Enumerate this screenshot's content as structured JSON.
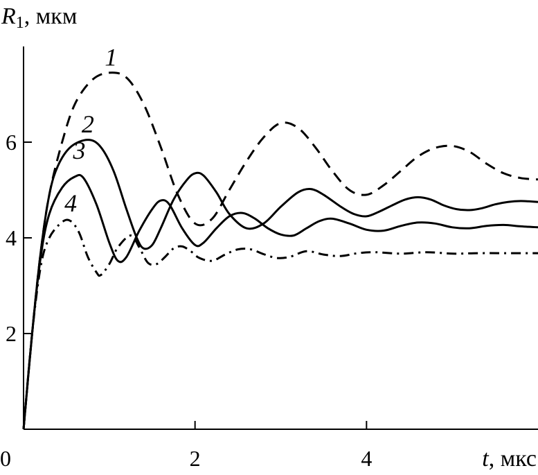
{
  "chart_data": {
    "type": "line",
    "ylabel_symbol": "R",
    "ylabel_subscript": "1",
    "ylabel_unit": ", мкм",
    "xlabel_symbol": "t",
    "xlabel_unit": ", мкс",
    "xlim": [
      0,
      6
    ],
    "ylim": [
      0,
      8
    ],
    "x_ticks": [
      {
        "value": 0,
        "label": "0"
      },
      {
        "value": 2,
        "label": "2"
      },
      {
        "value": 4,
        "label": "4"
      }
    ],
    "y_ticks": [
      {
        "value": 2,
        "label": "2"
      },
      {
        "value": 4,
        "label": "4"
      },
      {
        "value": 6,
        "label": "6"
      }
    ],
    "grid": false,
    "series": [
      {
        "label": "1",
        "style": "dashed",
        "label_at": [
          1.02,
          7.6
        ],
        "points": [
          [
            0,
            0
          ],
          [
            0.1,
            2.0
          ],
          [
            0.2,
            3.7
          ],
          [
            0.3,
            4.9
          ],
          [
            0.45,
            6.0
          ],
          [
            0.6,
            6.8
          ],
          [
            0.8,
            7.3
          ],
          [
            1.0,
            7.45
          ],
          [
            1.2,
            7.35
          ],
          [
            1.4,
            6.8
          ],
          [
            1.6,
            5.9
          ],
          [
            1.8,
            4.9
          ],
          [
            2.0,
            4.3
          ],
          [
            2.2,
            4.4
          ],
          [
            2.4,
            5.0
          ],
          [
            2.6,
            5.6
          ],
          [
            2.8,
            6.1
          ],
          [
            3.0,
            6.4
          ],
          [
            3.2,
            6.3
          ],
          [
            3.4,
            5.9
          ],
          [
            3.6,
            5.4
          ],
          [
            3.8,
            5.0
          ],
          [
            4.0,
            4.9
          ],
          [
            4.2,
            5.1
          ],
          [
            4.4,
            5.4
          ],
          [
            4.6,
            5.7
          ],
          [
            4.8,
            5.88
          ],
          [
            5.0,
            5.92
          ],
          [
            5.2,
            5.8
          ],
          [
            5.4,
            5.55
          ],
          [
            5.6,
            5.35
          ],
          [
            5.8,
            5.25
          ],
          [
            6.0,
            5.22
          ]
        ]
      },
      {
        "label": "2",
        "style": "solid",
        "label_at": [
          0.75,
          6.2
        ],
        "points": [
          [
            0,
            0
          ],
          [
            0.1,
            2.0
          ],
          [
            0.2,
            3.7
          ],
          [
            0.3,
            4.9
          ],
          [
            0.4,
            5.5
          ],
          [
            0.55,
            5.9
          ],
          [
            0.75,
            6.05
          ],
          [
            0.9,
            5.9
          ],
          [
            1.05,
            5.4
          ],
          [
            1.2,
            4.6
          ],
          [
            1.32,
            4.0
          ],
          [
            1.4,
            3.78
          ],
          [
            1.5,
            3.85
          ],
          [
            1.6,
            4.2
          ],
          [
            1.75,
            4.8
          ],
          [
            1.9,
            5.2
          ],
          [
            2.0,
            5.35
          ],
          [
            2.1,
            5.3
          ],
          [
            2.25,
            4.95
          ],
          [
            2.4,
            4.5
          ],
          [
            2.6,
            4.2
          ],
          [
            2.8,
            4.3
          ],
          [
            3.0,
            4.65
          ],
          [
            3.2,
            4.95
          ],
          [
            3.35,
            5.02
          ],
          [
            3.5,
            4.9
          ],
          [
            3.7,
            4.65
          ],
          [
            3.85,
            4.5
          ],
          [
            4.0,
            4.45
          ],
          [
            4.15,
            4.55
          ],
          [
            4.3,
            4.68
          ],
          [
            4.45,
            4.8
          ],
          [
            4.6,
            4.85
          ],
          [
            4.75,
            4.8
          ],
          [
            4.9,
            4.68
          ],
          [
            5.05,
            4.6
          ],
          [
            5.2,
            4.58
          ],
          [
            5.35,
            4.62
          ],
          [
            5.5,
            4.7
          ],
          [
            5.65,
            4.75
          ],
          [
            5.8,
            4.77
          ],
          [
            6.0,
            4.75
          ]
        ]
      },
      {
        "label": "3",
        "style": "solid",
        "label_at": [
          0.65,
          5.65
        ],
        "points": [
          [
            0,
            0
          ],
          [
            0.1,
            2.0
          ],
          [
            0.2,
            3.6
          ],
          [
            0.3,
            4.5
          ],
          [
            0.45,
            5.05
          ],
          [
            0.6,
            5.28
          ],
          [
            0.7,
            5.25
          ],
          [
            0.85,
            4.7
          ],
          [
            1.0,
            3.9
          ],
          [
            1.1,
            3.52
          ],
          [
            1.2,
            3.6
          ],
          [
            1.35,
            4.15
          ],
          [
            1.5,
            4.6
          ],
          [
            1.6,
            4.78
          ],
          [
            1.7,
            4.7
          ],
          [
            1.85,
            4.2
          ],
          [
            2.0,
            3.85
          ],
          [
            2.1,
            3.9
          ],
          [
            2.25,
            4.2
          ],
          [
            2.4,
            4.45
          ],
          [
            2.55,
            4.52
          ],
          [
            2.7,
            4.4
          ],
          [
            2.85,
            4.2
          ],
          [
            3.0,
            4.07
          ],
          [
            3.15,
            4.05
          ],
          [
            3.3,
            4.2
          ],
          [
            3.45,
            4.35
          ],
          [
            3.6,
            4.4
          ],
          [
            3.8,
            4.3
          ],
          [
            4.0,
            4.17
          ],
          [
            4.2,
            4.15
          ],
          [
            4.4,
            4.25
          ],
          [
            4.6,
            4.32
          ],
          [
            4.8,
            4.3
          ],
          [
            5.0,
            4.22
          ],
          [
            5.2,
            4.2
          ],
          [
            5.4,
            4.25
          ],
          [
            5.6,
            4.27
          ],
          [
            5.8,
            4.24
          ],
          [
            6.0,
            4.22
          ]
        ]
      },
      {
        "label": "4",
        "style": "dashdot",
        "label_at": [
          0.55,
          4.55
        ],
        "points": [
          [
            0,
            0
          ],
          [
            0.1,
            2.0
          ],
          [
            0.2,
            3.4
          ],
          [
            0.3,
            4.0
          ],
          [
            0.45,
            4.33
          ],
          [
            0.55,
            4.35
          ],
          [
            0.65,
            4.1
          ],
          [
            0.75,
            3.6
          ],
          [
            0.85,
            3.28
          ],
          [
            0.9,
            3.22
          ],
          [
            1.0,
            3.45
          ],
          [
            1.1,
            3.8
          ],
          [
            1.25,
            4.05
          ],
          [
            1.35,
            3.8
          ],
          [
            1.45,
            3.48
          ],
          [
            1.55,
            3.45
          ],
          [
            1.65,
            3.6
          ],
          [
            1.75,
            3.78
          ],
          [
            1.85,
            3.82
          ],
          [
            1.95,
            3.72
          ],
          [
            2.05,
            3.58
          ],
          [
            2.2,
            3.52
          ],
          [
            2.35,
            3.65
          ],
          [
            2.5,
            3.76
          ],
          [
            2.65,
            3.76
          ],
          [
            2.8,
            3.66
          ],
          [
            2.95,
            3.58
          ],
          [
            3.1,
            3.6
          ],
          [
            3.3,
            3.72
          ],
          [
            3.5,
            3.65
          ],
          [
            3.7,
            3.62
          ],
          [
            3.9,
            3.68
          ],
          [
            4.1,
            3.7
          ],
          [
            4.4,
            3.67
          ],
          [
            4.7,
            3.7
          ],
          [
            5.0,
            3.67
          ],
          [
            5.3,
            3.68
          ],
          [
            5.6,
            3.68
          ],
          [
            6.0,
            3.68
          ]
        ]
      }
    ]
  }
}
